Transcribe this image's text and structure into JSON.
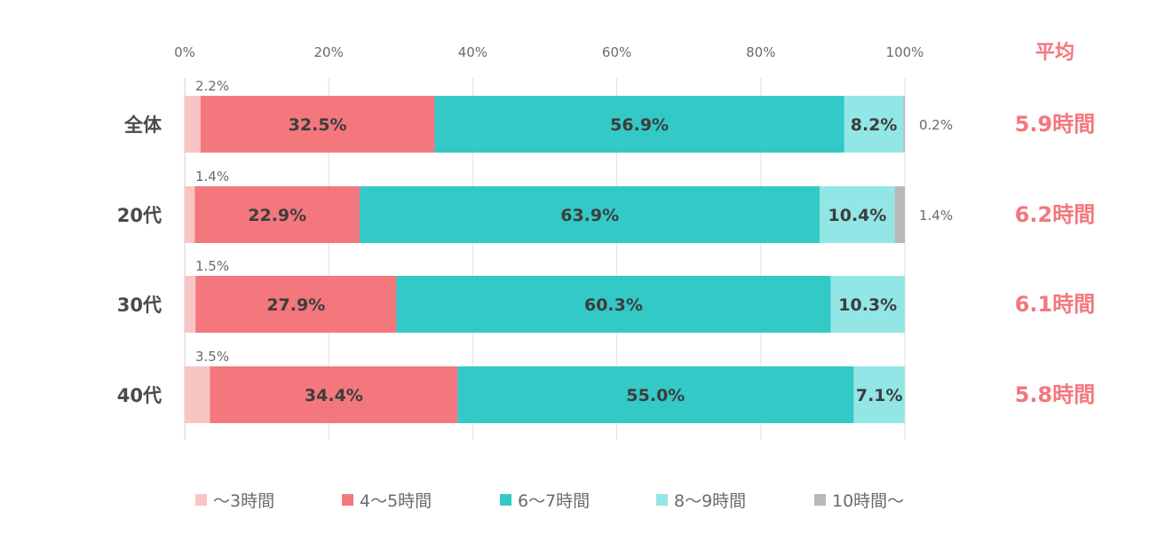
{
  "chart_data": {
    "type": "bar",
    "orientation": "horizontal",
    "stacked": true,
    "xlim": [
      0,
      100
    ],
    "x_ticks": [
      "0%",
      "20%",
      "40%",
      "60%",
      "80%",
      "100%"
    ],
    "grid": "vertical",
    "legend_position": "bottom",
    "categories": [
      "全体",
      "20代",
      "30代",
      "40代"
    ],
    "series": [
      {
        "name": "〜3時間",
        "color": "#f9c4c4",
        "values": [
          2.2,
          1.4,
          1.5,
          3.5
        ]
      },
      {
        "name": "4〜5時間",
        "color": "#f3777d",
        "values": [
          32.5,
          22.9,
          27.9,
          34.4
        ]
      },
      {
        "name": "6〜7時間",
        "color": "#33c9c6",
        "values": [
          56.9,
          63.9,
          60.3,
          55.0
        ]
      },
      {
        "name": "8〜9時間",
        "color": "#93e6e6",
        "values": [
          8.2,
          10.4,
          10.3,
          7.1
        ]
      },
      {
        "name": "10時間〜",
        "color": "#b8b8b8",
        "values": [
          0.2,
          1.4,
          0,
          0
        ]
      }
    ],
    "value_labels": [
      [
        "2.2%",
        "32.5%",
        "56.9%",
        "8.2%",
        "0.2%"
      ],
      [
        "1.4%",
        "22.9%",
        "63.9%",
        "10.4%",
        "1.4%"
      ],
      [
        "1.5%",
        "27.9%",
        "60.3%",
        "10.3%",
        ""
      ],
      [
        "3.5%",
        "34.4%",
        "55.0%",
        "7.1%",
        ""
      ]
    ],
    "average": {
      "heading": "平均",
      "color": "#f3777d",
      "values": [
        "5.9時間",
        "6.2時間",
        "6.1時間",
        "5.8時間"
      ]
    }
  }
}
